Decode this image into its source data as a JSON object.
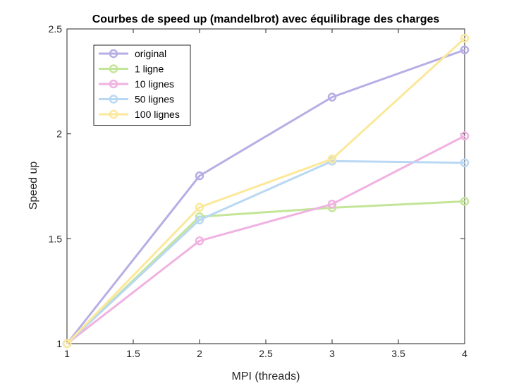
{
  "chart_data": {
    "type": "line",
    "title": "Courbes de speed up (mandelbrot) avec équilibrage des charges",
    "xlabel": "MPI (threads)",
    "ylabel": "Speed up",
    "xlim": [
      1,
      4
    ],
    "ylim": [
      1,
      2.5
    ],
    "xticks": [
      1,
      1.5,
      2,
      2.5,
      3,
      3.5,
      4
    ],
    "xtick_labels": [
      "1",
      "1.5",
      "2",
      "2.5",
      "3",
      "3.5",
      "4"
    ],
    "yticks": [
      1,
      1.5,
      2,
      2.5
    ],
    "ytick_labels": [
      "1",
      "1.5",
      "2",
      "2.5"
    ],
    "grid": false,
    "legend_position": "top-left",
    "x": [
      1,
      2,
      3,
      4
    ],
    "series": [
      {
        "name": "original",
        "color": "#b7aee5",
        "values": [
          1,
          1.8,
          2.175,
          2.4
        ]
      },
      {
        "name": "1 ligne",
        "color": "#c4e598",
        "values": [
          1,
          1.605,
          1.648,
          1.678
        ]
      },
      {
        "name": "10 lignes",
        "color": "#f0b2e1",
        "values": [
          1,
          1.49,
          1.665,
          1.99
        ]
      },
      {
        "name": "50 lignes",
        "color": "#b9d8f3",
        "values": [
          1,
          1.59,
          1.87,
          1.862
        ]
      },
      {
        "name": "100 lignes",
        "color": "#fbe89a",
        "values": [
          1,
          1.65,
          1.88,
          2.455
        ]
      }
    ]
  }
}
